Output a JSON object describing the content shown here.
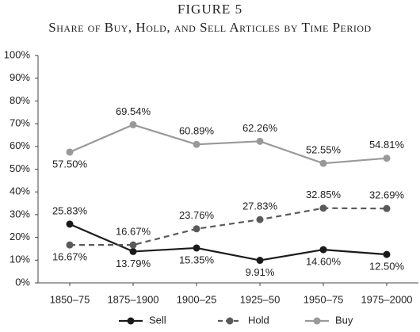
{
  "chart_data": {
    "type": "line",
    "title": "FIGURE 5",
    "subtitle": "Share of Buy, Hold, and Sell Articles by Time Period",
    "categories": [
      "1850–75",
      "1875–1900",
      "1900–25",
      "1925–50",
      "1950–75",
      "1975–2000"
    ],
    "series": [
      {
        "name": "Sell",
        "color": "#1a1a1a",
        "style": "solid",
        "values": [
          25.83,
          13.79,
          15.35,
          9.91,
          14.6,
          12.5
        ],
        "value_labels": [
          "25.83%",
          "13.79%",
          "15.35%",
          "9.91%",
          "14.60%",
          "12.50%"
        ]
      },
      {
        "name": "Hold",
        "color": "#5a5a5a",
        "style": "dashed",
        "values": [
          16.67,
          16.67,
          23.76,
          27.83,
          32.85,
          32.69
        ],
        "value_labels": [
          "16.67%",
          "16.67%",
          "23.76%",
          "27.83%",
          "32.85%",
          "32.69%"
        ]
      },
      {
        "name": "Buy",
        "color": "#999999",
        "style": "solid",
        "values": [
          57.5,
          69.54,
          60.89,
          62.26,
          52.55,
          54.81
        ],
        "value_labels": [
          "57.50%",
          "69.54%",
          "60.89%",
          "62.26%",
          "52.55%",
          "54.81%"
        ]
      }
    ],
    "ylim": [
      0,
      100
    ],
    "yticks": [
      {
        "value": 0,
        "label": "0%"
      },
      {
        "value": 10,
        "label": "10%"
      },
      {
        "value": 20,
        "label": "20%"
      },
      {
        "value": 30,
        "label": "30%"
      },
      {
        "value": 40,
        "label": "40%"
      },
      {
        "value": 50,
        "label": "50%"
      },
      {
        "value": 60,
        "label": "60%"
      },
      {
        "value": 70,
        "label": "70%"
      },
      {
        "value": 80,
        "label": "80%"
      },
      {
        "value": 90,
        "label": "90%"
      },
      {
        "value": 100,
        "label": "100%"
      }
    ],
    "grid": false,
    "legend": "bottom"
  }
}
